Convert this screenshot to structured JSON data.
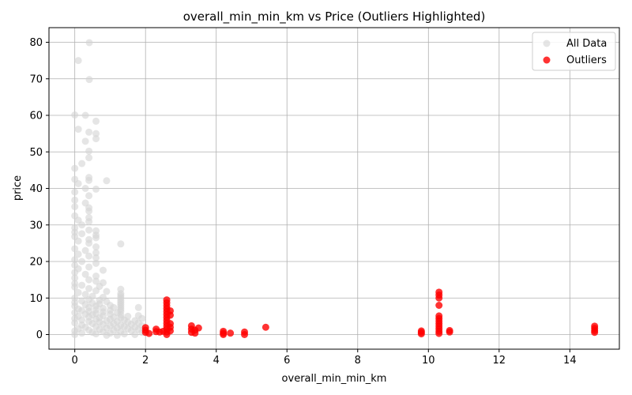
{
  "chart_data": {
    "type": "scatter",
    "title": "overall_min_min_km vs Price (Outliers Highlighted)",
    "xlabel": "overall_min_min_km",
    "ylabel": "price",
    "xlim": [
      -0.73,
      15.4
    ],
    "ylim": [
      -4,
      84
    ],
    "xticks": [
      0,
      2,
      4,
      6,
      8,
      10,
      12,
      14
    ],
    "yticks": [
      0,
      10,
      20,
      30,
      40,
      50,
      60,
      70,
      80
    ],
    "grid": true,
    "legend_position": "top-right",
    "series": [
      {
        "name": "All Data",
        "color": "#d3d3d3",
        "points": [
          [
            0.41,
            79.9
          ],
          [
            0.1,
            75.0
          ],
          [
            0.41,
            69.8
          ],
          [
            0.0,
            60.1
          ],
          [
            0.3,
            60.0
          ],
          [
            0.6,
            58.4
          ],
          [
            0.1,
            56.2
          ],
          [
            0.4,
            55.4
          ],
          [
            0.6,
            55.0
          ],
          [
            0.6,
            53.6
          ],
          [
            0.3,
            52.9
          ],
          [
            0.4,
            50.2
          ],
          [
            0.4,
            48.4
          ],
          [
            0.2,
            46.8
          ],
          [
            0.0,
            45.5
          ],
          [
            0.4,
            43.0
          ],
          [
            0.0,
            42.5
          ],
          [
            0.4,
            42.2
          ],
          [
            0.9,
            42.1
          ],
          [
            0.1,
            41.3
          ],
          [
            0.3,
            40.0
          ],
          [
            0.6,
            39.8
          ],
          [
            0.0,
            39.0
          ],
          [
            0.4,
            38.0
          ],
          [
            0.0,
            36.8
          ],
          [
            0.3,
            36.0
          ],
          [
            0.0,
            35.0
          ],
          [
            0.4,
            34.7
          ],
          [
            0.4,
            33.8
          ],
          [
            0.0,
            32.5
          ],
          [
            0.4,
            32.0
          ],
          [
            0.1,
            31.3
          ],
          [
            0.4,
            30.9
          ],
          [
            0.2,
            30.0
          ],
          [
            0.0,
            29.2
          ],
          [
            0.4,
            28.6
          ],
          [
            0.6,
            28.4
          ],
          [
            0.0,
            28.0
          ],
          [
            0.2,
            27.6
          ],
          [
            0.6,
            27.2
          ],
          [
            0.0,
            26.8
          ],
          [
            0.6,
            26.5
          ],
          [
            0.4,
            26.0
          ],
          [
            0.1,
            25.6
          ],
          [
            0.4,
            25.0
          ],
          [
            1.3,
            24.8
          ],
          [
            0.6,
            24.0
          ],
          [
            0.0,
            23.5
          ],
          [
            0.3,
            23.0
          ],
          [
            0.6,
            22.4
          ],
          [
            0.1,
            22.0
          ],
          [
            0.4,
            21.5
          ],
          [
            0.6,
            21.0
          ],
          [
            0.0,
            20.5
          ],
          [
            0.2,
            20.0
          ],
          [
            0.6,
            19.5
          ],
          [
            0.0,
            19.0
          ],
          [
            0.4,
            18.5
          ],
          [
            0.1,
            18.0
          ],
          [
            0.8,
            17.6
          ],
          [
            0.0,
            17.0
          ],
          [
            0.3,
            16.5
          ],
          [
            0.6,
            16.0
          ],
          [
            0.0,
            15.5
          ],
          [
            0.4,
            15.0
          ],
          [
            0.6,
            14.6
          ],
          [
            0.8,
            14.2
          ],
          [
            0.0,
            14.0
          ],
          [
            0.2,
            13.5
          ],
          [
            0.7,
            13.2
          ],
          [
            0.0,
            13.0
          ],
          [
            0.4,
            12.6
          ],
          [
            1.3,
            12.4
          ],
          [
            0.6,
            12.0
          ],
          [
            0.9,
            11.8
          ],
          [
            1.3,
            11.2
          ],
          [
            0.1,
            11.5
          ],
          [
            0.3,
            11.0
          ],
          [
            1.3,
            10.6
          ],
          [
            0.5,
            10.5
          ],
          [
            0.8,
            10.2
          ],
          [
            0.0,
            10.0
          ],
          [
            1.3,
            10.0
          ],
          [
            0.4,
            9.6
          ],
          [
            0.7,
            9.4
          ],
          [
            1.3,
            9.4
          ],
          [
            0.2,
            9.2
          ],
          [
            0.9,
            9.0
          ],
          [
            1.3,
            8.8
          ],
          [
            0.0,
            8.8
          ],
          [
            0.5,
            8.6
          ],
          [
            0.7,
            8.4
          ],
          [
            1.3,
            8.2
          ],
          [
            0.3,
            8.2
          ],
          [
            1.0,
            8.0
          ],
          [
            0.0,
            7.8
          ],
          [
            0.6,
            7.8
          ],
          [
            1.3,
            7.6
          ],
          [
            1.8,
            7.4
          ],
          [
            1.1,
            7.4
          ],
          [
            0.4,
            7.4
          ],
          [
            0.8,
            7.2
          ],
          [
            0.1,
            7.0
          ],
          [
            1.3,
            7.0
          ],
          [
            0.6,
            6.8
          ],
          [
            1.0,
            6.6
          ],
          [
            0.2,
            6.6
          ],
          [
            1.3,
            6.4
          ],
          [
            0.4,
            6.4
          ],
          [
            0.8,
            6.2
          ],
          [
            0.0,
            6.0
          ],
          [
            1.2,
            6.0
          ],
          [
            0.6,
            5.8
          ],
          [
            1.0,
            5.6
          ],
          [
            0.3,
            5.6
          ],
          [
            1.3,
            5.4
          ],
          [
            0.5,
            5.4
          ],
          [
            1.8,
            5.2
          ],
          [
            0.8,
            5.2
          ],
          [
            0.1,
            5.0
          ],
          [
            1.5,
            5.0
          ],
          [
            1.1,
            4.8
          ],
          [
            0.4,
            4.8
          ],
          [
            1.3,
            4.6
          ],
          [
            0.7,
            4.6
          ],
          [
            1.9,
            4.4
          ],
          [
            0.0,
            4.4
          ],
          [
            1.0,
            4.2
          ],
          [
            0.6,
            4.2
          ],
          [
            1.4,
            4.0
          ],
          [
            0.2,
            4.0
          ],
          [
            1.7,
            3.8
          ],
          [
            0.9,
            3.8
          ],
          [
            1.2,
            3.6
          ],
          [
            0.4,
            3.6
          ],
          [
            1.5,
            3.4
          ],
          [
            0.7,
            3.4
          ],
          [
            1.8,
            3.2
          ],
          [
            0.0,
            3.2
          ],
          [
            1.1,
            3.0
          ],
          [
            0.5,
            3.0
          ],
          [
            1.6,
            2.8
          ],
          [
            0.8,
            2.8
          ],
          [
            1.3,
            2.6
          ],
          [
            0.2,
            2.6
          ],
          [
            1.9,
            2.4
          ],
          [
            1.0,
            2.4
          ],
          [
            1.4,
            2.2
          ],
          [
            0.6,
            2.2
          ],
          [
            1.7,
            2.0
          ],
          [
            0.3,
            2.0
          ],
          [
            1.2,
            1.8
          ],
          [
            0.9,
            1.8
          ],
          [
            1.5,
            1.6
          ],
          [
            0.1,
            1.6
          ],
          [
            1.8,
            1.4
          ],
          [
            0.7,
            1.4
          ],
          [
            1.1,
            1.2
          ],
          [
            0.4,
            1.2
          ],
          [
            1.6,
            1.0
          ],
          [
            0.0,
            1.0
          ],
          [
            1.3,
            0.8
          ],
          [
            0.8,
            0.8
          ],
          [
            1.9,
            0.6
          ],
          [
            0.5,
            0.6
          ],
          [
            1.0,
            0.4
          ],
          [
            0.2,
            0.4
          ],
          [
            1.4,
            0.2
          ],
          [
            0.6,
            0.2
          ],
          [
            1.7,
            0.0
          ],
          [
            0.0,
            0.0
          ],
          [
            1.2,
            -0.2
          ],
          [
            0.9,
            -0.2
          ]
        ]
      },
      {
        "name": "Outliers",
        "color": "#ff0000",
        "points": [
          [
            2.0,
            1.9
          ],
          [
            2.0,
            1.2
          ],
          [
            2.0,
            0.6
          ],
          [
            2.1,
            0.3
          ],
          [
            2.3,
            1.5
          ],
          [
            2.3,
            0.8
          ],
          [
            2.4,
            0.7
          ],
          [
            2.5,
            0.9
          ],
          [
            2.6,
            9.5
          ],
          [
            2.6,
            8.7
          ],
          [
            2.6,
            7.9
          ],
          [
            2.6,
            7.1
          ],
          [
            2.6,
            6.3
          ],
          [
            2.6,
            5.5
          ],
          [
            2.6,
            4.7
          ],
          [
            2.6,
            3.9
          ],
          [
            2.6,
            3.1
          ],
          [
            2.6,
            2.3
          ],
          [
            2.6,
            1.5
          ],
          [
            2.6,
            0.7
          ],
          [
            2.6,
            0.0
          ],
          [
            2.7,
            6.5
          ],
          [
            2.7,
            5.3
          ],
          [
            2.7,
            3.0
          ],
          [
            2.7,
            2.0
          ],
          [
            2.7,
            1.0
          ],
          [
            3.3,
            2.4
          ],
          [
            3.3,
            1.5
          ],
          [
            3.3,
            0.6
          ],
          [
            3.4,
            1.2
          ],
          [
            3.4,
            0.4
          ],
          [
            3.5,
            1.8
          ],
          [
            4.2,
            0.9
          ],
          [
            4.2,
            0.4
          ],
          [
            4.2,
            0.0
          ],
          [
            4.4,
            0.4
          ],
          [
            4.8,
            0.7
          ],
          [
            4.8,
            0.0
          ],
          [
            5.4,
            2.0
          ],
          [
            9.8,
            1.0
          ],
          [
            9.8,
            0.6
          ],
          [
            9.8,
            0.2
          ],
          [
            10.3,
            11.6
          ],
          [
            10.3,
            10.8
          ],
          [
            10.3,
            10.0
          ],
          [
            10.3,
            8.0
          ],
          [
            10.3,
            5.1
          ],
          [
            10.3,
            4.4
          ],
          [
            10.3,
            3.7
          ],
          [
            10.3,
            3.0
          ],
          [
            10.3,
            2.3
          ],
          [
            10.3,
            1.6
          ],
          [
            10.3,
            0.9
          ],
          [
            10.3,
            0.3
          ],
          [
            10.6,
            1.1
          ],
          [
            10.6,
            0.7
          ],
          [
            14.7,
            2.3
          ],
          [
            14.7,
            1.7
          ],
          [
            14.7,
            1.1
          ],
          [
            14.7,
            0.6
          ]
        ]
      }
    ]
  }
}
